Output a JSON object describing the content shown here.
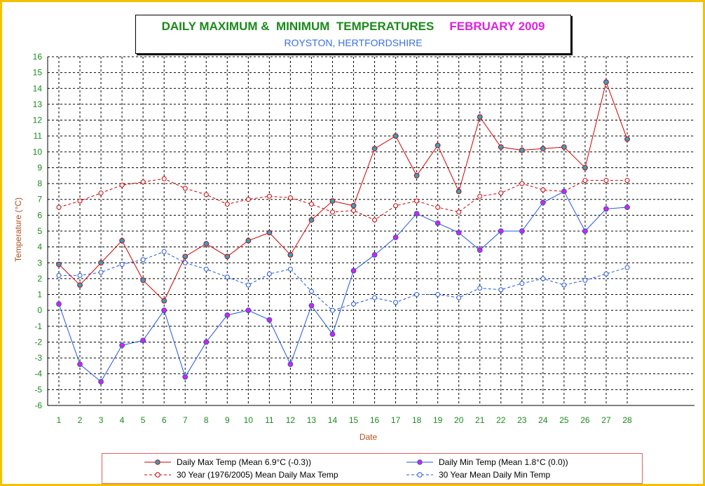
{
  "title": {
    "main": "DAILY MAXIMUM &  MINIMUM  TEMPERATURES",
    "month": "FEBRUARY 2009",
    "subtitle": "ROYSTON, HERTFORDSHIRE"
  },
  "colors": {
    "title": "#1a8a1a",
    "month": "#e020e0",
    "subtitle": "#3a6fe0",
    "max_line": "#cc0000",
    "min_line": "#2255dd",
    "max_marker": "#2aa6c8",
    "min_marker": "#e020e0",
    "axis_text": "#1a8a1a",
    "axis_label": "#b05020",
    "frame": "#f5c000"
  },
  "chart_data": {
    "type": "line",
    "xlabel": "Date",
    "ylabel": "Temperature (°C)",
    "x": [
      1,
      2,
      3,
      4,
      5,
      6,
      7,
      8,
      9,
      10,
      11,
      12,
      13,
      14,
      15,
      16,
      17,
      18,
      19,
      20,
      21,
      22,
      23,
      24,
      25,
      26,
      27,
      28
    ],
    "ylim": [
      -6,
      16
    ],
    "yticks": [
      -6,
      -5,
      -4,
      -3,
      -2,
      -1,
      0,
      1,
      2,
      3,
      4,
      5,
      6,
      7,
      8,
      9,
      10,
      11,
      12,
      13,
      14,
      15,
      16
    ],
    "grid": true,
    "legend_position": "bottom",
    "series": [
      {
        "name": "Daily Max Temp (Mean 6.9°C (-0.3))",
        "style": "solid",
        "color": "#cc0000",
        "marker_color": "#2aa6c8",
        "values": [
          2.9,
          1.6,
          3.0,
          4.4,
          1.9,
          0.6,
          3.4,
          4.2,
          3.4,
          4.4,
          4.9,
          3.5,
          5.7,
          6.9,
          6.6,
          10.2,
          11.0,
          8.5,
          10.4,
          7.5,
          12.2,
          10.3,
          10.1,
          10.2,
          10.3,
          9.0,
          14.4,
          10.8
        ]
      },
      {
        "name": "Daily Min Temp (Mean 1.8°C (0.0))",
        "style": "solid",
        "color": "#2255dd",
        "marker_color": "#e020e0",
        "values": [
          0.4,
          -3.4,
          -4.5,
          -2.2,
          -1.9,
          0.0,
          -4.2,
          -2.0,
          -0.3,
          0.0,
          -0.6,
          -3.4,
          0.3,
          -1.5,
          2.5,
          3.5,
          4.6,
          6.1,
          5.5,
          4.9,
          3.8,
          5.0,
          5.0,
          6.8,
          7.5,
          5.0,
          6.4,
          6.5
        ]
      },
      {
        "name": "30 Year (1976/2005) Mean Daily Max Temp",
        "style": "dashed",
        "color": "#cc0000",
        "marker_color": "#ffffff",
        "values": [
          6.5,
          6.9,
          7.4,
          7.9,
          8.1,
          8.3,
          7.7,
          7.3,
          6.7,
          7.0,
          7.2,
          7.1,
          6.7,
          6.2,
          6.3,
          5.7,
          6.6,
          6.9,
          6.5,
          6.2,
          7.2,
          7.4,
          8.0,
          7.6,
          7.5,
          8.2,
          8.2,
          8.2
        ]
      },
      {
        "name": "30 Year Mean Daily Min Temp",
        "style": "dashed",
        "color": "#2255dd",
        "marker_color": "#ffffff",
        "values": [
          2.2,
          2.2,
          2.4,
          2.9,
          3.2,
          3.7,
          3.0,
          2.6,
          2.1,
          1.6,
          2.3,
          2.6,
          1.2,
          0.0,
          0.4,
          0.8,
          0.5,
          1.0,
          1.0,
          0.8,
          1.4,
          1.3,
          1.7,
          2.0,
          1.6,
          1.9,
          2.3,
          2.7
        ]
      }
    ]
  }
}
